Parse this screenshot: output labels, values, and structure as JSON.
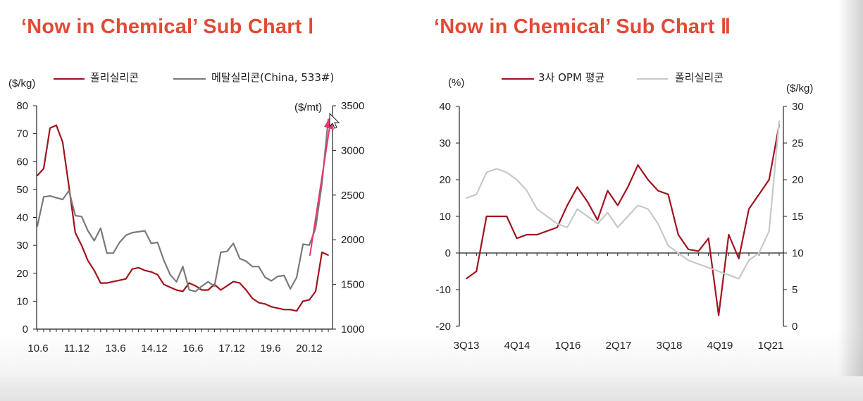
{
  "charts": [
    {
      "title": "‘Now in Chemical’ Sub Chart Ⅰ",
      "legend": [
        "폴리실리콘",
        "메탈실리콘(China,  533#)"
      ],
      "left_unit": "($/kg)",
      "right_unit": "($/mt)",
      "series_colors": [
        "#a0141e",
        "#7a7a7a"
      ]
    },
    {
      "title": "‘Now in Chemical’ Sub Chart Ⅱ",
      "legend": [
        "3사 OPM 평균",
        "폴리실리콘"
      ],
      "left_unit": "(%)",
      "right_unit": "($/kg)",
      "series_colors": [
        "#a0141e",
        "#c8c8c8"
      ]
    }
  ],
  "chart_data": [
    {
      "type": "line",
      "title": "‘Now in Chemical’ Sub Chart Ⅰ",
      "x_tick_labels": [
        "10.6",
        "11.12",
        "13.6",
        "14.12",
        "16.6",
        "17.12",
        "19.6",
        "20.12"
      ],
      "ylim_left": [
        0,
        80
      ],
      "ylim_right": [
        1000,
        3500
      ],
      "y_ticks_left": [
        0,
        10,
        20,
        30,
        40,
        50,
        60,
        70,
        80
      ],
      "y_ticks_right": [
        1000,
        1500,
        2000,
        2500,
        3000,
        3500
      ],
      "series": [
        {
          "name": "폴리실리콘",
          "axis": "left",
          "color": "#a0141e",
          "values": [
            55,
            57.5,
            72,
            73,
            67,
            51,
            34.5,
            30,
            24.5,
            21,
            16.5,
            16.5,
            17,
            17.5,
            18,
            21.5,
            22,
            21,
            20.5,
            19.5,
            16,
            15,
            14,
            13.5,
            16.5,
            15.5,
            14,
            14,
            16,
            14,
            15.5,
            17,
            16.5,
            14,
            11,
            9.5,
            9,
            8,
            7.5,
            7,
            7,
            6.5,
            10,
            10.5,
            13.5,
            27.5,
            26.5
          ]
        },
        {
          "name": "메탈실리콘(China,  533#)",
          "axis": "right",
          "color": "#7a7a7a",
          "values": [
            2150,
            2480,
            2490,
            2470,
            2450,
            2550,
            2270,
            2260,
            2100,
            1990,
            2130,
            1850,
            1850,
            1970,
            2050,
            2080,
            2090,
            2100,
            1960,
            1970,
            1770,
            1610,
            1530,
            1700,
            1440,
            1420,
            1480,
            1530,
            1480,
            1860,
            1870,
            1960,
            1790,
            1760,
            1700,
            1700,
            1580,
            1540,
            1590,
            1600,
            1450,
            1580,
            1950,
            1940,
            2130,
            2630,
            3350
          ]
        }
      ],
      "annotation": "pink arrow pointing up"
    },
    {
      "type": "line",
      "title": "‘Now in Chemical’ Sub Chart Ⅱ",
      "x_tick_labels": [
        "3Q13",
        "4Q14",
        "1Q16",
        "2Q17",
        "3Q18",
        "4Q19",
        "1Q21"
      ],
      "ylim_left": [
        -20,
        40
      ],
      "ylim_right": [
        0,
        30
      ],
      "y_ticks_left": [
        -20,
        -10,
        0,
        10,
        20,
        30,
        40
      ],
      "y_ticks_right": [
        0,
        5,
        10,
        15,
        20,
        25,
        30
      ],
      "series": [
        {
          "name": "3사 OPM 평균",
          "axis": "left",
          "color": "#a0141e",
          "values": [
            -7,
            -5,
            10,
            10,
            10,
            4,
            5,
            5,
            6,
            7,
            13,
            18,
            14,
            9,
            17,
            13,
            18,
            24,
            20,
            17,
            16,
            5,
            1,
            0.5,
            4,
            -17,
            5,
            -1.5,
            12,
            16,
            20,
            35
          ]
        },
        {
          "name": "폴리실리콘",
          "axis": "right",
          "color": "#c8c8c8",
          "values": [
            17.5,
            18,
            21,
            21.5,
            21,
            20,
            18.5,
            16,
            15,
            14,
            13.5,
            16,
            15,
            14,
            15.5,
            13.5,
            15,
            16.5,
            16,
            14,
            11,
            10,
            9,
            8.5,
            8,
            7.5,
            7,
            6.5,
            9,
            10,
            13,
            28
          ]
        }
      ]
    }
  ]
}
